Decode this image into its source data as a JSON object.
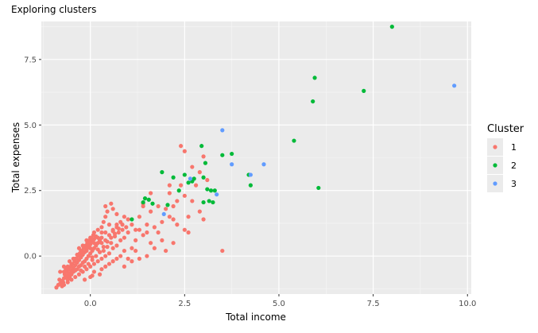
{
  "chart_data": {
    "type": "scatter",
    "title": "Exploring clusters",
    "xlabel": "Total income",
    "ylabel": "Total expenses",
    "xlim": [
      -1.3,
      10.1
    ],
    "ylim": [
      -1.45,
      8.95
    ],
    "x_ticks": [
      0.0,
      2.5,
      5.0,
      7.5,
      10.0
    ],
    "x_tick_labels": [
      "0.0",
      "2.5",
      "5.0",
      "7.5",
      "10.0"
    ],
    "y_ticks": [
      0.0,
      2.5,
      5.0,
      7.5
    ],
    "y_tick_labels": [
      "0.0",
      "2.5",
      "5.0",
      "7.5"
    ],
    "grid": true,
    "legend": {
      "title": "Cluster",
      "position": "right"
    },
    "series": [
      {
        "name": "1",
        "color": "#F8766D",
        "points": [
          [
            -0.9,
            -1.2
          ],
          [
            -0.85,
            -1.1
          ],
          [
            -0.8,
            -1.05
          ],
          [
            -0.82,
            -0.9
          ],
          [
            -0.75,
            -0.95
          ],
          [
            -0.7,
            -0.85
          ],
          [
            -0.72,
            -1.0
          ],
          [
            -0.65,
            -0.8
          ],
          [
            -0.68,
            -0.7
          ],
          [
            -0.6,
            -0.75
          ],
          [
            -0.62,
            -0.6
          ],
          [
            -0.55,
            -0.65
          ],
          [
            -0.58,
            -0.5
          ],
          [
            -0.5,
            -0.55
          ],
          [
            -0.52,
            -0.4
          ],
          [
            -0.45,
            -0.45
          ],
          [
            -0.48,
            -0.3
          ],
          [
            -0.4,
            -0.35
          ],
          [
            -0.42,
            -0.2
          ],
          [
            -0.35,
            -0.25
          ],
          [
            -0.38,
            -0.1
          ],
          [
            -0.3,
            -0.15
          ],
          [
            -0.32,
            0.0
          ],
          [
            -0.25,
            -0.05
          ],
          [
            -0.28,
            0.1
          ],
          [
            -0.2,
            0.05
          ],
          [
            -0.22,
            0.2
          ],
          [
            -0.15,
            0.15
          ],
          [
            -0.18,
            0.3
          ],
          [
            -0.1,
            0.25
          ],
          [
            -0.12,
            0.4
          ],
          [
            -0.05,
            0.35
          ],
          [
            -0.08,
            0.5
          ],
          [
            0.0,
            0.45
          ],
          [
            -0.02,
            0.6
          ],
          [
            0.05,
            0.55
          ],
          [
            0.02,
            0.7
          ],
          [
            0.1,
            0.65
          ],
          [
            0.08,
            0.8
          ],
          [
            0.15,
            0.75
          ],
          [
            -0.7,
            -0.6
          ],
          [
            -0.6,
            -0.9
          ],
          [
            -0.55,
            -0.8
          ],
          [
            -0.5,
            -0.7
          ],
          [
            -0.45,
            -0.6
          ],
          [
            -0.4,
            -0.55
          ],
          [
            -0.35,
            -0.5
          ],
          [
            -0.3,
            -0.4
          ],
          [
            -0.25,
            -0.35
          ],
          [
            -0.2,
            -0.25
          ],
          [
            -0.15,
            -0.2
          ],
          [
            -0.1,
            -0.1
          ],
          [
            -0.05,
            0.0
          ],
          [
            0.0,
            0.1
          ],
          [
            0.05,
            0.2
          ],
          [
            0.1,
            0.3
          ],
          [
            0.15,
            0.4
          ],
          [
            0.2,
            0.5
          ],
          [
            0.25,
            0.6
          ],
          [
            0.3,
            0.7
          ],
          [
            -0.3,
            0.3
          ],
          [
            -0.2,
            0.4
          ],
          [
            -0.1,
            0.6
          ],
          [
            0.0,
            0.7
          ],
          [
            0.1,
            0.9
          ],
          [
            0.2,
            1.0
          ],
          [
            0.3,
            1.1
          ],
          [
            0.35,
            1.3
          ],
          [
            0.4,
            1.5
          ],
          [
            0.45,
            1.7
          ],
          [
            0.2,
            -0.2
          ],
          [
            0.3,
            -0.1
          ],
          [
            0.4,
            0.0
          ],
          [
            0.5,
            0.1
          ],
          [
            0.6,
            0.3
          ],
          [
            0.7,
            0.4
          ],
          [
            0.8,
            0.6
          ],
          [
            0.9,
            0.7
          ],
          [
            1.0,
            0.9
          ],
          [
            0.55,
            0.5
          ],
          [
            0.35,
            0.2
          ],
          [
            0.45,
            0.35
          ],
          [
            0.65,
            0.75
          ],
          [
            0.75,
            0.9
          ],
          [
            0.85,
            1.0
          ],
          [
            0.95,
            1.1
          ],
          [
            0.5,
            1.2
          ],
          [
            0.6,
            1.0
          ],
          [
            0.7,
            1.2
          ],
          [
            0.4,
            0.9
          ],
          [
            -0.6,
            -0.4
          ],
          [
            -0.5,
            -0.3
          ],
          [
            -0.4,
            -0.1
          ],
          [
            -0.3,
            0.0
          ],
          [
            -0.2,
            0.1
          ],
          [
            -0.1,
            0.2
          ],
          [
            0.0,
            0.3
          ],
          [
            0.1,
            0.5
          ],
          [
            0.2,
            0.7
          ],
          [
            0.3,
            0.9
          ],
          [
            -0.8,
            -0.6
          ],
          [
            -0.7,
            -0.4
          ],
          [
            -0.65,
            -0.5
          ],
          [
            -0.55,
            -0.2
          ],
          [
            -0.45,
            -0.1
          ],
          [
            -0.35,
            0.05
          ],
          [
            -0.25,
            0.2
          ],
          [
            -0.15,
            0.35
          ],
          [
            -0.05,
            0.45
          ],
          [
            0.05,
            0.65
          ],
          [
            0.1,
            -0.3
          ],
          [
            0.0,
            -0.4
          ],
          [
            -0.1,
            -0.5
          ],
          [
            -0.2,
            -0.6
          ],
          [
            -0.3,
            -0.7
          ],
          [
            -0.4,
            -0.8
          ],
          [
            -0.5,
            -0.9
          ],
          [
            -0.6,
            -1.0
          ],
          [
            -0.7,
            -1.1
          ],
          [
            -0.75,
            -1.15
          ],
          [
            -0.05,
            -0.3
          ],
          [
            0.05,
            -0.15
          ],
          [
            0.15,
            0.0
          ],
          [
            0.25,
            0.15
          ],
          [
            0.35,
            0.35
          ],
          [
            0.45,
            0.55
          ],
          [
            0.55,
            0.7
          ],
          [
            0.65,
            0.85
          ],
          [
            0.75,
            1.05
          ],
          [
            0.85,
            1.2
          ],
          [
            -0.25,
            -0.55
          ],
          [
            -0.15,
            -0.4
          ],
          [
            0.05,
            -0.05
          ],
          [
            0.2,
            0.25
          ],
          [
            0.3,
            0.5
          ],
          [
            0.4,
            0.6
          ],
          [
            0.5,
            0.8
          ],
          [
            0.6,
            0.95
          ],
          [
            0.7,
            1.1
          ],
          [
            0.8,
            1.3
          ],
          [
            1.1,
            1.2
          ],
          [
            1.2,
            1.0
          ],
          [
            1.0,
            1.4
          ],
          [
            1.3,
            1.5
          ],
          [
            0.9,
            1.5
          ],
          [
            1.2,
            0.6
          ],
          [
            1.1,
            0.3
          ],
          [
            0.9,
            0.2
          ],
          [
            1.0,
            -0.1
          ],
          [
            0.8,
            0.0
          ],
          [
            0.6,
            1.8
          ],
          [
            0.55,
            2.0
          ],
          [
            0.7,
            1.6
          ],
          [
            0.4,
            1.9
          ],
          [
            1.4,
            0.8
          ],
          [
            1.5,
            1.2
          ],
          [
            1.5,
            0.9
          ],
          [
            1.3,
            1.0
          ],
          [
            1.6,
            1.7
          ],
          [
            1.4,
            1.9
          ],
          [
            1.8,
            1.9
          ],
          [
            2.0,
            1.8
          ],
          [
            2.1,
            1.5
          ],
          [
            1.9,
            1.3
          ],
          [
            2.2,
            1.4
          ],
          [
            2.3,
            1.2
          ],
          [
            1.8,
            0.9
          ],
          [
            1.7,
            1.1
          ],
          [
            2.5,
            1.0
          ],
          [
            2.6,
            0.9
          ],
          [
            2.2,
            0.5
          ],
          [
            1.7,
            0.3
          ],
          [
            1.9,
            0.6
          ],
          [
            2.0,
            0.2
          ],
          [
            1.6,
            0.5
          ],
          [
            1.3,
            -0.1
          ],
          [
            1.2,
            0.2
          ],
          [
            0.9,
            -0.4
          ],
          [
            1.1,
            -0.2
          ],
          [
            1.5,
            0.0
          ],
          [
            0.3,
            -0.5
          ],
          [
            0.4,
            -0.4
          ],
          [
            0.5,
            -0.3
          ],
          [
            0.6,
            -0.2
          ],
          [
            0.7,
            -0.1
          ],
          [
            0.25,
            -0.7
          ],
          [
            0.0,
            -0.8
          ],
          [
            -0.15,
            -0.9
          ],
          [
            0.1,
            -0.6
          ],
          [
            0.05,
            -0.75
          ],
          [
            2.4,
            4.2
          ],
          [
            2.5,
            4.0
          ],
          [
            2.1,
            2.7
          ],
          [
            2.3,
            2.1
          ],
          [
            2.5,
            2.3
          ],
          [
            2.7,
            2.1
          ],
          [
            2.9,
            3.2
          ],
          [
            2.8,
            2.7
          ],
          [
            3.0,
            3.8
          ],
          [
            1.6,
            2.4
          ],
          [
            2.9,
            1.7
          ],
          [
            3.0,
            1.4
          ],
          [
            2.6,
            1.5
          ],
          [
            2.2,
            1.9
          ],
          [
            3.5,
            0.2
          ],
          [
            1.4,
            2.0
          ],
          [
            2.1,
            2.4
          ],
          [
            2.4,
            2.7
          ],
          [
            3.1,
            2.9
          ],
          [
            2.7,
            3.4
          ]
        ]
      },
      {
        "name": "2",
        "color": "#00BA38",
        "points": [
          [
            8.0,
            8.75
          ],
          [
            5.95,
            6.8
          ],
          [
            5.9,
            5.9
          ],
          [
            7.25,
            6.3
          ],
          [
            5.4,
            4.4
          ],
          [
            2.95,
            4.2
          ],
          [
            3.75,
            3.9
          ],
          [
            3.5,
            3.85
          ],
          [
            3.05,
            3.55
          ],
          [
            1.9,
            3.2
          ],
          [
            2.5,
            3.1
          ],
          [
            2.2,
            3.0
          ],
          [
            1.45,
            2.2
          ],
          [
            1.55,
            2.15
          ],
          [
            1.4,
            2.05
          ],
          [
            1.65,
            2.0
          ],
          [
            2.7,
            2.85
          ],
          [
            2.75,
            2.95
          ],
          [
            2.6,
            2.8
          ],
          [
            2.35,
            2.5
          ],
          [
            2.05,
            1.95
          ],
          [
            3.1,
            2.55
          ],
          [
            3.2,
            2.5
          ],
          [
            3.25,
            2.05
          ],
          [
            3.0,
            2.05
          ],
          [
            3.15,
            2.1
          ],
          [
            4.25,
            2.7
          ],
          [
            4.2,
            3.1
          ],
          [
            6.05,
            2.6
          ],
          [
            3.3,
            2.5
          ],
          [
            3.0,
            3.0
          ],
          [
            1.1,
            1.4
          ]
        ]
      },
      {
        "name": "3",
        "color": "#619CFF",
        "points": [
          [
            9.65,
            6.5
          ],
          [
            3.5,
            4.8
          ],
          [
            3.75,
            3.5
          ],
          [
            4.6,
            3.5
          ],
          [
            4.25,
            3.1
          ],
          [
            2.65,
            2.95
          ],
          [
            3.35,
            2.35
          ],
          [
            1.95,
            1.6
          ]
        ]
      }
    ]
  }
}
